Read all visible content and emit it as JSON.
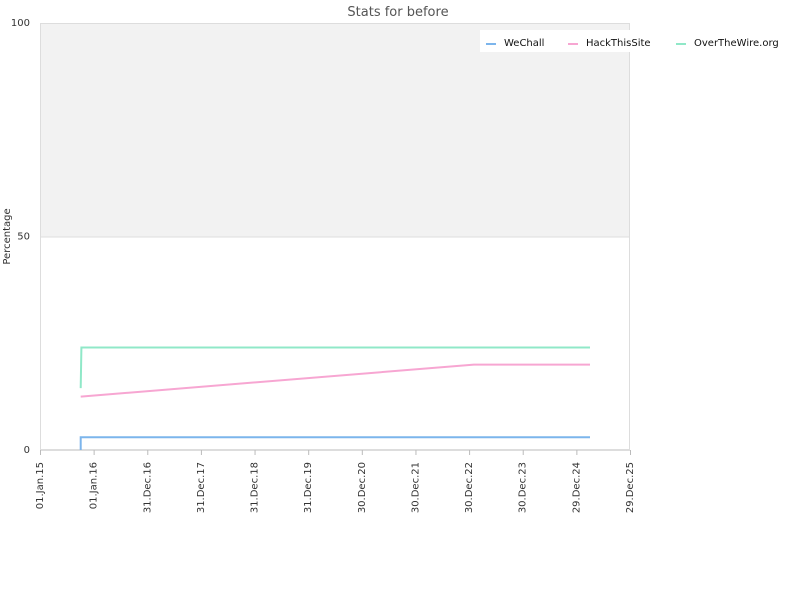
{
  "chart_data": {
    "type": "line",
    "title": "Stats for before",
    "xlabel": "",
    "ylabel": "Percentage",
    "ylim": [
      0,
      100
    ],
    "y_ticks": [
      "0",
      "50",
      "100"
    ],
    "x_range": [
      "2015-01-01",
      "2025-12-29"
    ],
    "x_ticks": [
      {
        "label": "01.Jan.15",
        "date": "2015-01-01"
      },
      {
        "label": "01.Jan.16",
        "date": "2016-01-01"
      },
      {
        "label": "31.Dec.16",
        "date": "2016-12-31"
      },
      {
        "label": "31.Dec.17",
        "date": "2017-12-31"
      },
      {
        "label": "31.Dec.18",
        "date": "2018-12-31"
      },
      {
        "label": "31.Dec.19",
        "date": "2019-12-31"
      },
      {
        "label": "30.Dec.20",
        "date": "2020-12-30"
      },
      {
        "label": "30.Dec.21",
        "date": "2021-12-30"
      },
      {
        "label": "30.Dec.22",
        "date": "2022-12-30"
      },
      {
        "label": "30.Dec.23",
        "date": "2023-12-30"
      },
      {
        "label": "29.Dec.24",
        "date": "2024-12-29"
      },
      {
        "label": "29.Dec.25",
        "date": "2025-12-29"
      }
    ],
    "grid": true,
    "legend_position": "top-right",
    "series": [
      {
        "name": "WeChall",
        "color": "#7cb5ec",
        "points": [
          [
            "2015-10-05",
            0
          ],
          [
            "2015-10-05",
            3
          ],
          [
            "2025-04-01",
            3
          ]
        ]
      },
      {
        "name": "HackThisSite",
        "color": "#f7a6d2",
        "points": [
          [
            "2015-10-05",
            12.5
          ],
          [
            "2023-02-01",
            20
          ],
          [
            "2025-04-01",
            20
          ]
        ]
      },
      {
        "name": "OverTheWire.org",
        "color": "#90e8c8",
        "points": [
          [
            "2015-10-05",
            14.5
          ],
          [
            "2015-10-10",
            24
          ],
          [
            "2025-04-01",
            24
          ]
        ]
      }
    ]
  }
}
